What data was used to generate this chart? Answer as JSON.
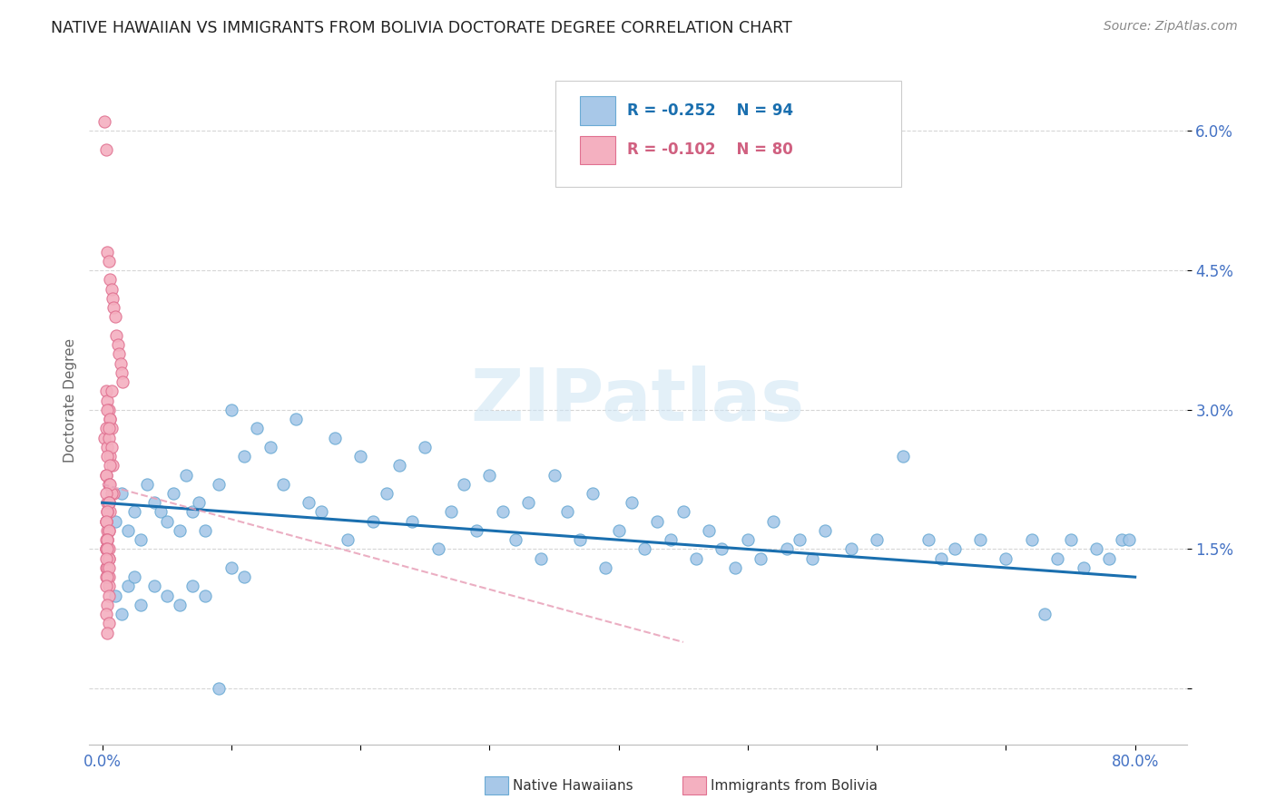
{
  "title": "NATIVE HAWAIIAN VS IMMIGRANTS FROM BOLIVIA DOCTORATE DEGREE CORRELATION CHART",
  "source": "Source: ZipAtlas.com",
  "ylabel": "Doctorate Degree",
  "ytick_vals": [
    0.0,
    0.015,
    0.03,
    0.045,
    0.06
  ],
  "ytick_labels": [
    "",
    "1.5%",
    "3.0%",
    "4.5%",
    "6.0%"
  ],
  "xtick_vals": [
    0.0,
    0.1,
    0.2,
    0.3,
    0.4,
    0.5,
    0.6,
    0.7,
    0.8
  ],
  "xtick_labels": [
    "0.0%",
    "",
    "",
    "",
    "",
    "",
    "",
    "",
    "80.0%"
  ],
  "xlim": [
    -0.01,
    0.84
  ],
  "ylim": [
    -0.006,
    0.068
  ],
  "legend_r1": "R = -0.252",
  "legend_n1": "N = 94",
  "legend_r2": "R = -0.102",
  "legend_n2": "N = 80",
  "blue_face": "#a8c8e8",
  "blue_edge": "#6aaad4",
  "pink_face": "#f4b0c0",
  "pink_edge": "#e07090",
  "line_blue": "#1a6faf",
  "line_pink": "#e8a0b8",
  "watermark": "ZIPatlas",
  "title_color": "#222222",
  "axis_label_color": "#4472c4",
  "ylabel_color": "#666666",
  "source_color": "#888888",
  "legend_text_blue": "#1a6faf",
  "legend_text_pink": "#d06080",
  "grid_color": "#cccccc",
  "blue_x": [
    0.005,
    0.01,
    0.015,
    0.02,
    0.025,
    0.03,
    0.035,
    0.04,
    0.045,
    0.05,
    0.055,
    0.06,
    0.065,
    0.07,
    0.075,
    0.08,
    0.09,
    0.1,
    0.11,
    0.12,
    0.13,
    0.14,
    0.15,
    0.16,
    0.17,
    0.18,
    0.19,
    0.2,
    0.21,
    0.22,
    0.23,
    0.24,
    0.25,
    0.26,
    0.27,
    0.28,
    0.29,
    0.3,
    0.31,
    0.32,
    0.33,
    0.34,
    0.35,
    0.36,
    0.37,
    0.38,
    0.39,
    0.4,
    0.41,
    0.42,
    0.43,
    0.44,
    0.45,
    0.46,
    0.47,
    0.48,
    0.49,
    0.5,
    0.51,
    0.52,
    0.53,
    0.54,
    0.55,
    0.56,
    0.58,
    0.6,
    0.62,
    0.64,
    0.65,
    0.66,
    0.68,
    0.7,
    0.72,
    0.73,
    0.74,
    0.75,
    0.76,
    0.77,
    0.78,
    0.79,
    0.795,
    0.01,
    0.02,
    0.03,
    0.025,
    0.015,
    0.04,
    0.05,
    0.06,
    0.07,
    0.08,
    0.09,
    0.1,
    0.11
  ],
  "blue_y": [
    0.02,
    0.018,
    0.021,
    0.017,
    0.019,
    0.016,
    0.022,
    0.02,
    0.019,
    0.018,
    0.021,
    0.017,
    0.023,
    0.019,
    0.02,
    0.017,
    0.022,
    0.03,
    0.025,
    0.028,
    0.026,
    0.022,
    0.029,
    0.02,
    0.019,
    0.027,
    0.016,
    0.025,
    0.018,
    0.021,
    0.024,
    0.018,
    0.026,
    0.015,
    0.019,
    0.022,
    0.017,
    0.023,
    0.019,
    0.016,
    0.02,
    0.014,
    0.023,
    0.019,
    0.016,
    0.021,
    0.013,
    0.017,
    0.02,
    0.015,
    0.018,
    0.016,
    0.019,
    0.014,
    0.017,
    0.015,
    0.013,
    0.016,
    0.014,
    0.018,
    0.015,
    0.016,
    0.014,
    0.017,
    0.015,
    0.016,
    0.025,
    0.016,
    0.014,
    0.015,
    0.016,
    0.014,
    0.016,
    0.008,
    0.014,
    0.016,
    0.013,
    0.015,
    0.014,
    0.016,
    0.016,
    0.01,
    0.011,
    0.009,
    0.012,
    0.008,
    0.011,
    0.01,
    0.009,
    0.011,
    0.01,
    0.0,
    0.013,
    0.012
  ],
  "pink_x": [
    0.002,
    0.003,
    0.004,
    0.005,
    0.006,
    0.007,
    0.008,
    0.009,
    0.01,
    0.011,
    0.012,
    0.013,
    0.014,
    0.015,
    0.016,
    0.003,
    0.004,
    0.005,
    0.006,
    0.007,
    0.002,
    0.004,
    0.006,
    0.008,
    0.003,
    0.005,
    0.007,
    0.009,
    0.004,
    0.006,
    0.003,
    0.005,
    0.007,
    0.004,
    0.006,
    0.003,
    0.005,
    0.007,
    0.004,
    0.006,
    0.003,
    0.005,
    0.004,
    0.006,
    0.003,
    0.005,
    0.004,
    0.003,
    0.005,
    0.004,
    0.003,
    0.005,
    0.004,
    0.003,
    0.005,
    0.004,
    0.003,
    0.005,
    0.004,
    0.003,
    0.005,
    0.004,
    0.003,
    0.005,
    0.004,
    0.003,
    0.005,
    0.004,
    0.003,
    0.005,
    0.004,
    0.003,
    0.005,
    0.004,
    0.003,
    0.005,
    0.004,
    0.003,
    0.005,
    0.004
  ],
  "pink_y": [
    0.061,
    0.058,
    0.047,
    0.046,
    0.044,
    0.043,
    0.042,
    0.041,
    0.04,
    0.038,
    0.037,
    0.036,
    0.035,
    0.034,
    0.033,
    0.032,
    0.031,
    0.03,
    0.029,
    0.028,
    0.027,
    0.026,
    0.025,
    0.024,
    0.023,
    0.022,
    0.032,
    0.021,
    0.03,
    0.029,
    0.028,
    0.027,
    0.026,
    0.025,
    0.024,
    0.023,
    0.022,
    0.021,
    0.02,
    0.019,
    0.018,
    0.028,
    0.017,
    0.022,
    0.021,
    0.02,
    0.019,
    0.018,
    0.017,
    0.016,
    0.015,
    0.02,
    0.019,
    0.018,
    0.017,
    0.016,
    0.015,
    0.014,
    0.013,
    0.016,
    0.015,
    0.014,
    0.013,
    0.012,
    0.016,
    0.015,
    0.014,
    0.013,
    0.012,
    0.011,
    0.015,
    0.014,
    0.013,
    0.012,
    0.011,
    0.01,
    0.009,
    0.008,
    0.007,
    0.006
  ]
}
